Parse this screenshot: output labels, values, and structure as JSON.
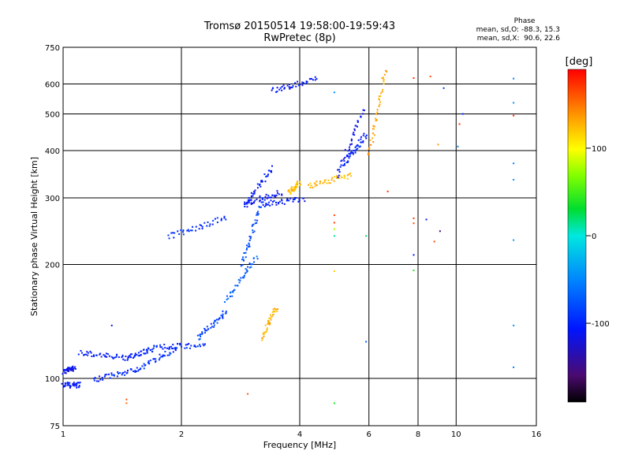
{
  "header": {
    "title_line1": "Tromsø 20150514 19:58:00-19:59:43",
    "title_line2": "RwPretec (8p)"
  },
  "phase_info": {
    "heading": "Phase",
    "line_o": "mean, sd,O: -88.3, 15.3",
    "line_x": "mean, sd,X:  90.6, 22.6"
  },
  "colorbar": {
    "label": "[deg]",
    "ticks": [
      "100",
      "0",
      "-100"
    ],
    "tick_values": [
      100,
      0,
      -100
    ],
    "range": [
      -190,
      190
    ]
  },
  "chart_data": {
    "type": "scatter",
    "xlabel": "Frequency [MHz]",
    "ylabel": "Stationary phase Virtual Height [km]",
    "x_scale": "log",
    "y_scale": "log",
    "xlim": [
      1,
      16
    ],
    "ylim": [
      75,
      750
    ],
    "grid": true,
    "x_ticks": [
      1,
      2,
      4,
      6,
      8,
      10,
      16
    ],
    "x_tick_labels": [
      "1",
      "2",
      "4",
      "6",
      "8",
      "10",
      "16"
    ],
    "y_ticks": [
      75,
      100,
      200,
      300,
      400,
      500,
      600,
      750
    ],
    "y_tick_labels": [
      "75",
      "100",
      "200",
      "300",
      "400",
      "500",
      "600",
      "750"
    ],
    "segments": [
      {
        "x": [
          1.0,
          1.07
        ],
        "y": [
          104,
          107
        ],
        "phase": -118
      },
      {
        "x": [
          1.0,
          1.1
        ],
        "y": [
          96,
          96
        ],
        "phase": -112
      },
      {
        "x": [
          1.1,
          1.45
        ],
        "y": [
          117,
          113
        ],
        "phase": -108
      },
      {
        "x": [
          1.2,
          1.55
        ],
        "y": [
          99,
          106
        ],
        "phase": -102
      },
      {
        "x": [
          1.45,
          1.7
        ],
        "y": [
          113,
          120
        ],
        "phase": -104
      },
      {
        "x": [
          1.55,
          1.95
        ],
        "y": [
          106,
          120
        ],
        "phase": -98
      },
      {
        "x": [
          1.7,
          2.3
        ],
        "y": [
          121,
          122
        ],
        "phase": -98
      },
      {
        "x": [
          2.2,
          2.6
        ],
        "y": [
          128,
          150
        ],
        "phase": -88
      },
      {
        "x": [
          2.6,
          3.1
        ],
        "y": [
          160,
          210
        ],
        "phase": -72
      },
      {
        "x": [
          2.85,
          3.2
        ],
        "y": [
          200,
          290
        ],
        "phase": -82
      },
      {
        "x": [
          2.9,
          3.4
        ],
        "y": [
          285,
          360
        ],
        "phase": -108
      },
      {
        "x": [
          2.9,
          3.6
        ],
        "y": [
          290,
          310
        ],
        "phase": -112
      },
      {
        "x": [
          3.2,
          4.1
        ],
        "y": [
          288,
          298
        ],
        "phase": -108
      },
      {
        "x": [
          1.85,
          2.6
        ],
        "y": [
          237,
          265
        ],
        "phase": -98
      },
      {
        "x": [
          3.2,
          3.5
        ],
        "y": [
          128,
          155
        ],
        "phase": 130
      },
      {
        "x": [
          4.2,
          5.4
        ],
        "y": [
          322,
          345
        ],
        "phase": 128
      },
      {
        "x": [
          5.0,
          5.8
        ],
        "y": [
          345,
          510
        ],
        "phase": -115
      },
      {
        "x": [
          5.2,
          5.9
        ],
        "y": [
          370,
          440
        ],
        "phase": -105
      },
      {
        "x": [
          6.0,
          6.6
        ],
        "y": [
          390,
          650
        ],
        "phase": 135
      },
      {
        "x": [
          3.4,
          4.4
        ],
        "y": [
          575,
          620
        ],
        "phase": -112
      },
      {
        "x": [
          3.75,
          4.0
        ],
        "y": [
          310,
          330
        ],
        "phase": 125
      }
    ],
    "isolated_points": [
      {
        "x": 1.45,
        "y": 88,
        "phase": 165
      },
      {
        "x": 1.45,
        "y": 86,
        "phase": 155
      },
      {
        "x": 1.33,
        "y": 138,
        "phase": -115
      },
      {
        "x": 2.95,
        "y": 91,
        "phase": 160
      },
      {
        "x": 4.9,
        "y": 270,
        "phase": 165
      },
      {
        "x": 4.9,
        "y": 258,
        "phase": 170
      },
      {
        "x": 4.9,
        "y": 248,
        "phase": 80
      },
      {
        "x": 4.9,
        "y": 238,
        "phase": 10
      },
      {
        "x": 4.9,
        "y": 192,
        "phase": 120
      },
      {
        "x": 4.9,
        "y": 86,
        "phase": 40
      },
      {
        "x": 5.9,
        "y": 238,
        "phase": 20
      },
      {
        "x": 5.9,
        "y": 125,
        "phase": -70
      },
      {
        "x": 7.8,
        "y": 622,
        "phase": 175
      },
      {
        "x": 7.8,
        "y": 265,
        "phase": 170
      },
      {
        "x": 7.8,
        "y": 257,
        "phase": 165
      },
      {
        "x": 7.8,
        "y": 212,
        "phase": -110
      },
      {
        "x": 7.8,
        "y": 193,
        "phase": 40
      },
      {
        "x": 8.6,
        "y": 628,
        "phase": 165
      },
      {
        "x": 8.4,
        "y": 263,
        "phase": -105
      },
      {
        "x": 8.8,
        "y": 230,
        "phase": 165
      },
      {
        "x": 9.1,
        "y": 245,
        "phase": -150
      },
      {
        "x": 9.3,
        "y": 585,
        "phase": -90
      },
      {
        "x": 9.0,
        "y": 415,
        "phase": 140
      },
      {
        "x": 10.2,
        "y": 470,
        "phase": 175
      },
      {
        "x": 10.1,
        "y": 410,
        "phase": -50
      },
      {
        "x": 10.4,
        "y": 500,
        "phase": -95
      },
      {
        "x": 14.0,
        "y": 620,
        "phase": -55
      },
      {
        "x": 14.0,
        "y": 535,
        "phase": -45
      },
      {
        "x": 14.0,
        "y": 495,
        "phase": 180
      },
      {
        "x": 14.0,
        "y": 370,
        "phase": -55
      },
      {
        "x": 14.0,
        "y": 335,
        "phase": -45
      },
      {
        "x": 14.0,
        "y": 232,
        "phase": -40
      },
      {
        "x": 14.0,
        "y": 138,
        "phase": -45
      },
      {
        "x": 14.0,
        "y": 107,
        "phase": -55
      },
      {
        "x": 4.9,
        "y": 570,
        "phase": -45
      },
      {
        "x": 6.7,
        "y": 312,
        "phase": 175
      }
    ]
  }
}
